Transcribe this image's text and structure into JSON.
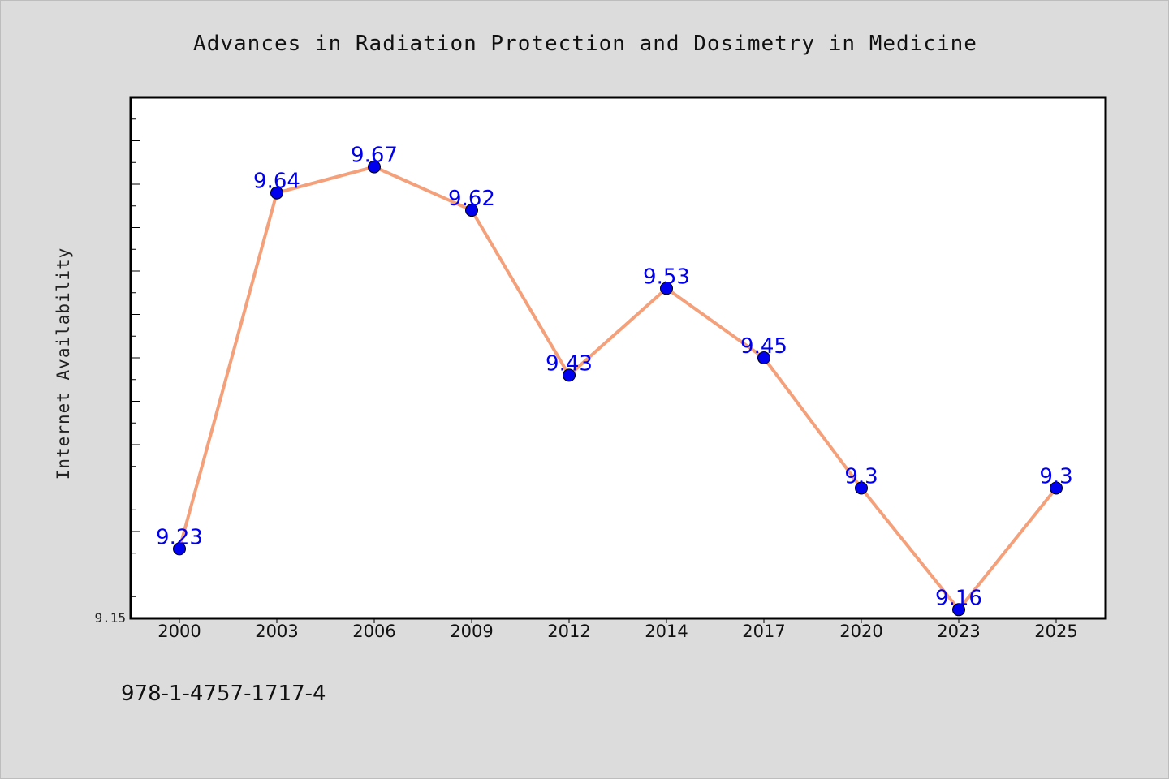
{
  "chart_data": {
    "type": "line",
    "title": "Advances in Radiation Protection and Dosimetry in Medicine",
    "xlabel": "",
    "ylabel": "Internet Availability",
    "categories": [
      "2000",
      "2003",
      "2006",
      "2009",
      "2012",
      "2014",
      "2017",
      "2020",
      "2023",
      "2025"
    ],
    "series": [
      {
        "values": [
          9.23,
          9.64,
          9.67,
          9.62,
          9.43,
          9.53,
          9.45,
          9.3,
          9.16,
          9.3
        ],
        "labels": [
          "9.23",
          "9.64",
          "9.67",
          "9.62",
          "9.43",
          "9.53",
          "9.45",
          "9.3",
          "9.16",
          "9.3"
        ]
      }
    ],
    "y_tick_labels": [
      "9.15"
    ],
    "ylim": [
      9.15,
      9.75
    ],
    "grid": false,
    "legend": "none",
    "colors": {
      "line": "#f4a07a",
      "marker": "#0000ee",
      "label": "#0000ee",
      "plot_background": "#ffffff",
      "figure_background": "#dcdcdc"
    }
  },
  "footer": {
    "isbn": "978-1-4757-1717-4"
  }
}
